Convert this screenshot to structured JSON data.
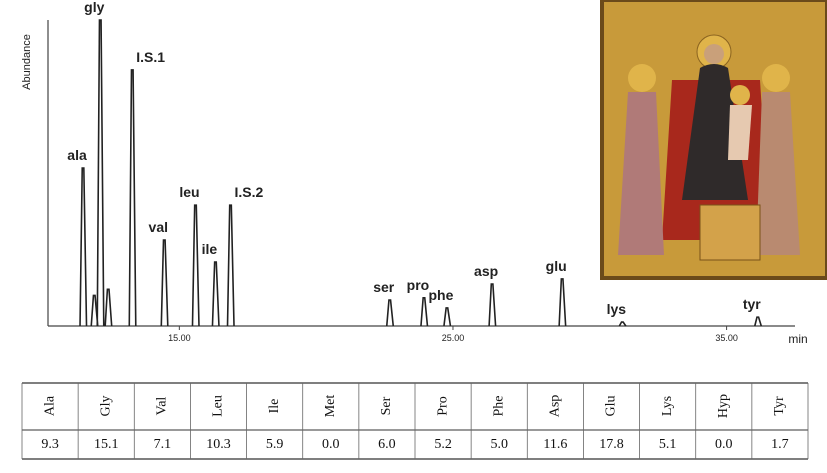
{
  "chart_data": {
    "type": "peaks",
    "x_label": "min",
    "y_label": "Abundance",
    "x": [
      11.48,
      11.89,
      12.11,
      12.4,
      13.28,
      14.45,
      15.59,
      16.32,
      16.87,
      22.69,
      23.94,
      24.78,
      26.43,
      28.99,
      31.19,
      36.14
    ],
    "values": [
      51.6,
      10,
      100,
      12,
      83.7,
      28.1,
      39.5,
      20.9,
      39.5,
      8.5,
      9.2,
      5.9,
      13.7,
      15.4,
      1.3,
      2.9
    ],
    "labels": [
      "ala",
      null,
      "gly",
      null,
      "I.S.1",
      "val",
      "leu",
      "ile",
      "I.S.2",
      "ser",
      "pro",
      "phe",
      "asp",
      "glu",
      "lys",
      "tyr"
    ],
    "color": "#222222",
    "xlim": [
      10.2,
      37.5
    ],
    "ylim": [
      0,
      100
    ],
    "xticks": [
      {
        "value": 15,
        "label": "15.00"
      },
      {
        "value": 25,
        "label": "25.00"
      },
      {
        "value": 35,
        "label": "35.00"
      }
    ]
  },
  "table": {
    "header": [
      "Ala",
      "Gly",
      "Val",
      "Leu",
      "Ile",
      "Met",
      "Ser",
      "Pro",
      "Phe",
      "Asp",
      "Glu",
      "Lys",
      "Hyp",
      "Tyr"
    ],
    "rows": [
      [
        "9.3",
        "15.1",
        "7.1",
        "10.3",
        "5.9",
        "0.0",
        "6.0",
        "5.2",
        "5.0",
        "11.6",
        "17.8",
        "5.1",
        "0.0",
        "1.7"
      ]
    ]
  }
}
